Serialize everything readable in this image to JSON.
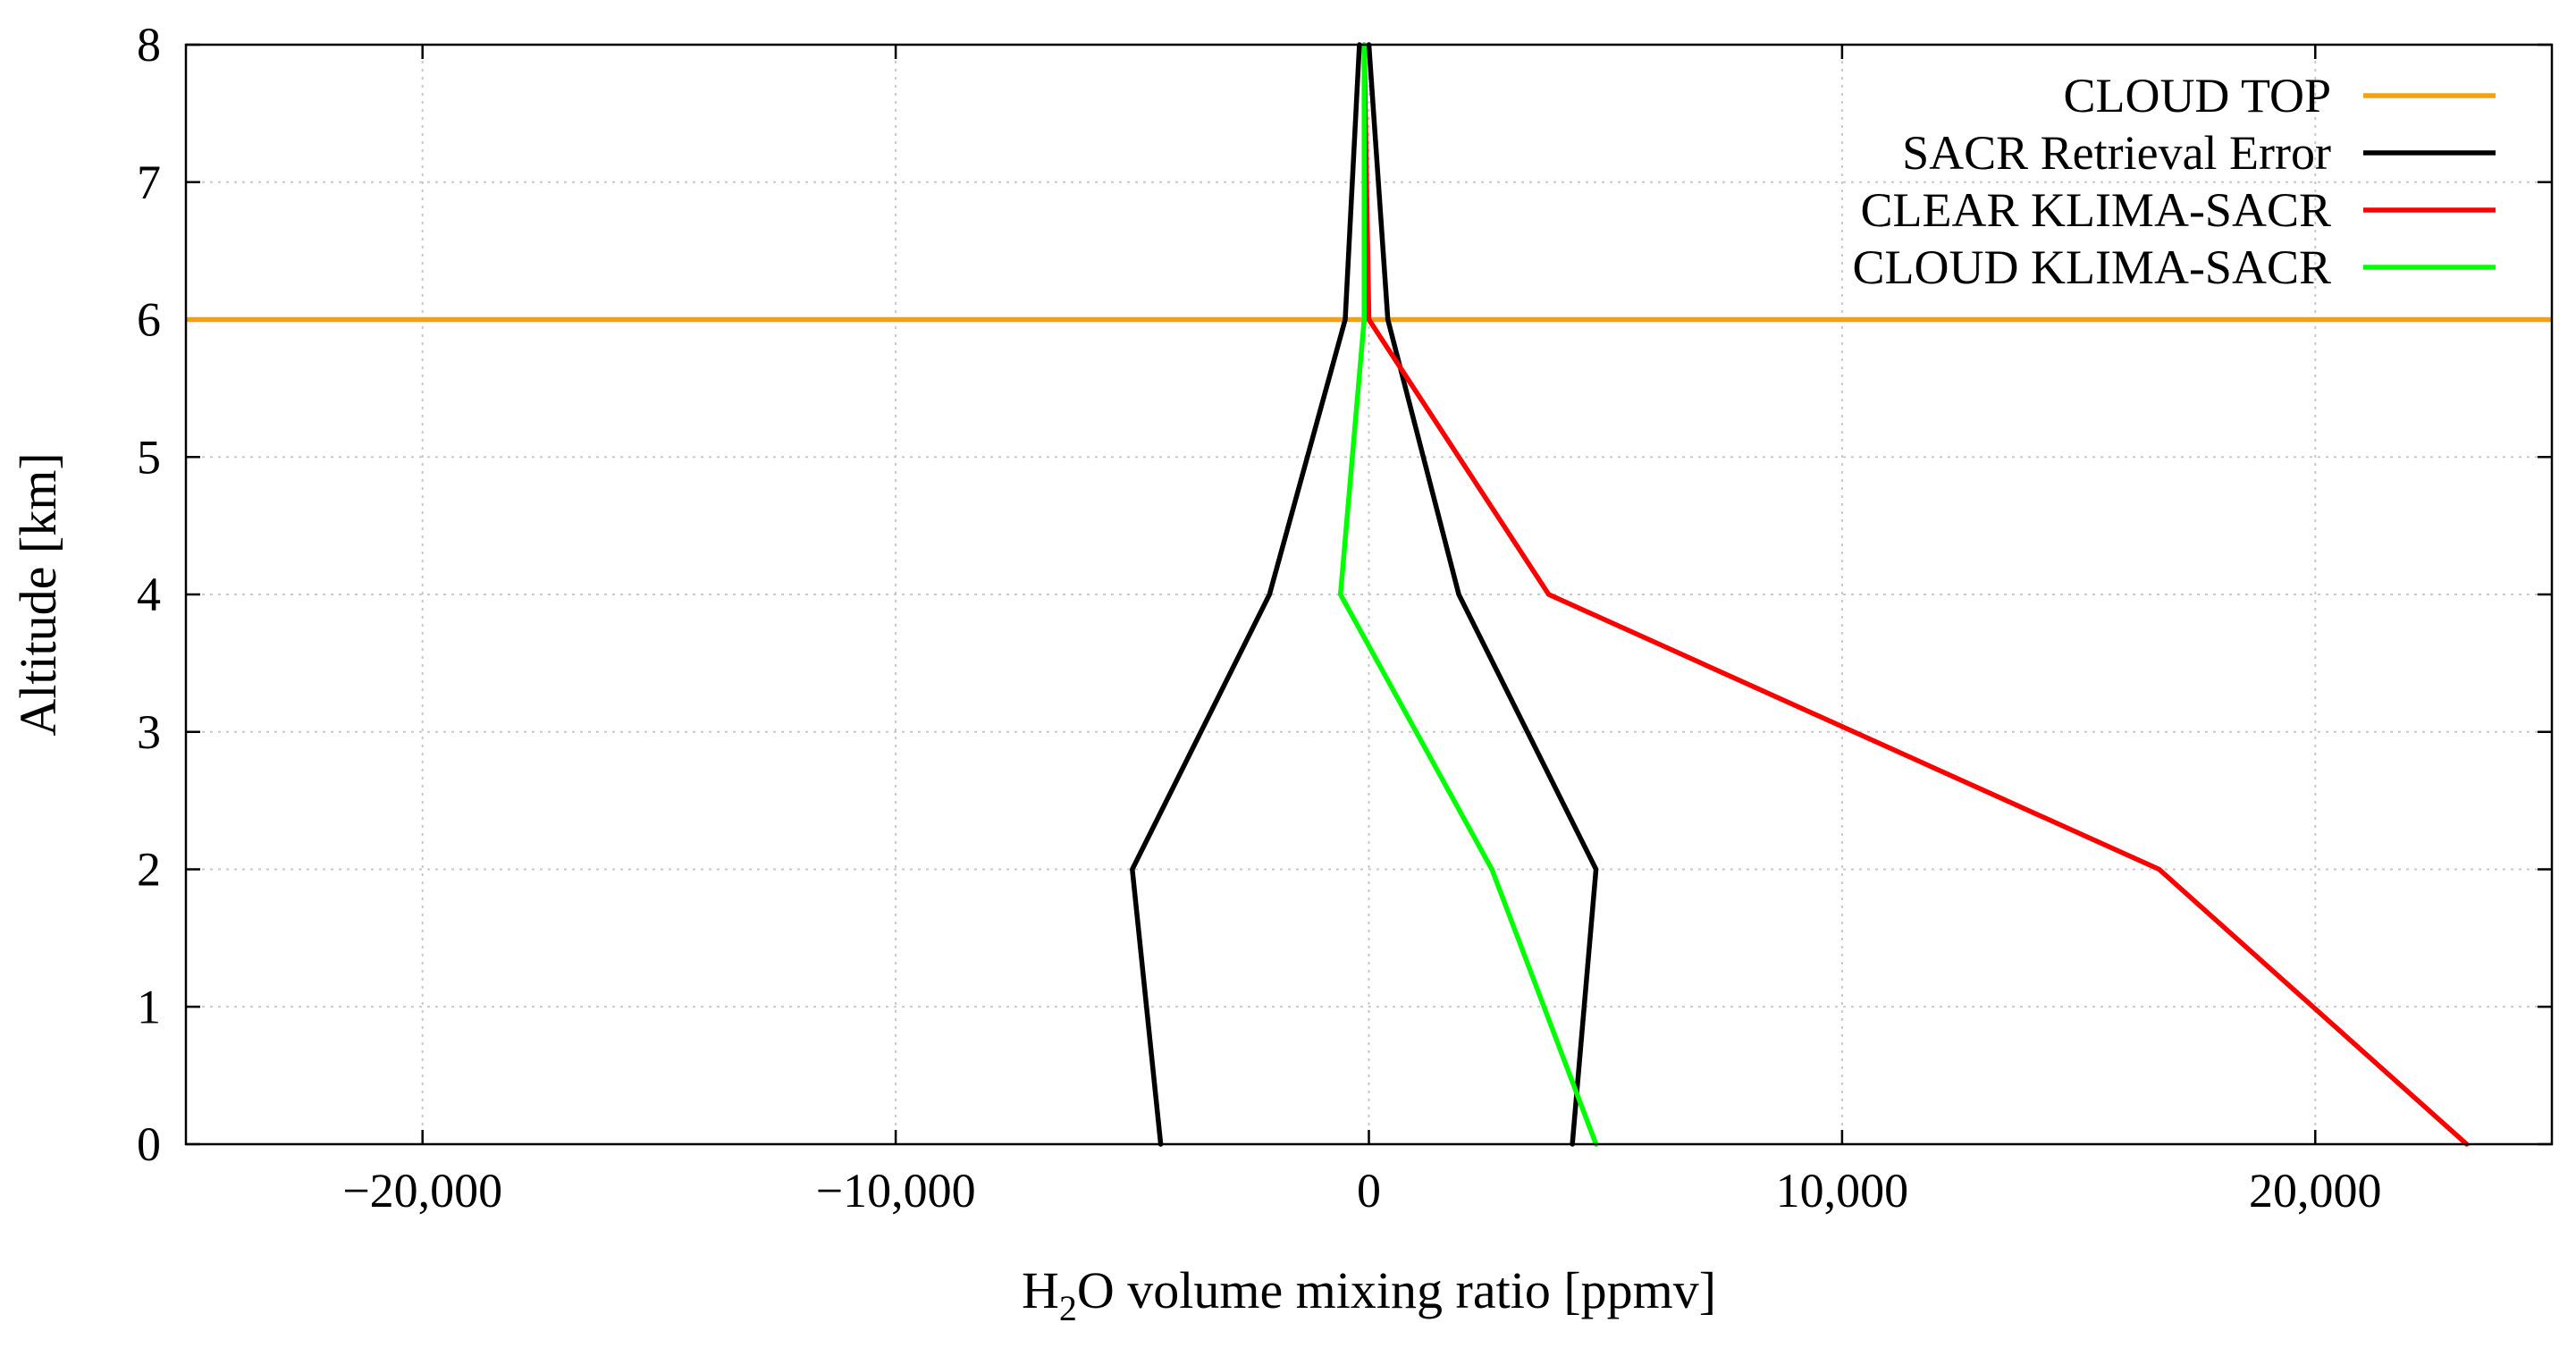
{
  "chart_data": {
    "type": "line",
    "title": "",
    "xlabel_prefix": "H",
    "xlabel_sub": "2",
    "xlabel_suffix": "O volume mixing ratio [ppmv]",
    "ylabel": "Altitude [km]",
    "xlim": [
      -25000,
      25000
    ],
    "ylim": [
      0,
      8
    ],
    "xticks": [
      -20000,
      -10000,
      0,
      10000,
      20000
    ],
    "xtick_labels": [
      "−20,000",
      "−10,000",
      "0",
      "10,000",
      "20,000"
    ],
    "yticks": [
      0,
      1,
      2,
      3,
      4,
      5,
      6,
      7,
      8
    ],
    "ytick_labels": [
      "0",
      "1",
      "2",
      "3",
      "4",
      "5",
      "6",
      "7",
      "8"
    ],
    "grid": true,
    "legend_position": "top-right",
    "horizontal_lines": [
      {
        "name": "CLOUD TOP",
        "y": 6,
        "color": "#f5a00c"
      }
    ],
    "series": [
      {
        "name": "SACR Retrieval Error",
        "color": "#000000",
        "segments": [
          {
            "x": [
              4300,
              4800,
              1900,
              400,
              0
            ],
            "y": [
              0,
              2,
              4,
              6,
              8
            ]
          },
          {
            "x": [
              -4400,
              -5000,
              -2100,
              -500,
              -200
            ],
            "y": [
              0,
              2,
              4,
              6,
              8
            ]
          }
        ]
      },
      {
        "name": "CLEAR KLIMA-SACR",
        "color": "#ff0000",
        "segments": [
          {
            "x": [
              23200,
              16700,
              3800,
              0,
              -100
            ],
            "y": [
              0,
              2,
              4,
              6,
              8
            ]
          }
        ]
      },
      {
        "name": "CLOUD KLIMA-SACR",
        "color": "#00ff00",
        "segments": [
          {
            "x": [
              4800,
              2600,
              -600,
              -100,
              -100
            ],
            "y": [
              0,
              2,
              4,
              6,
              8
            ]
          }
        ]
      }
    ]
  }
}
